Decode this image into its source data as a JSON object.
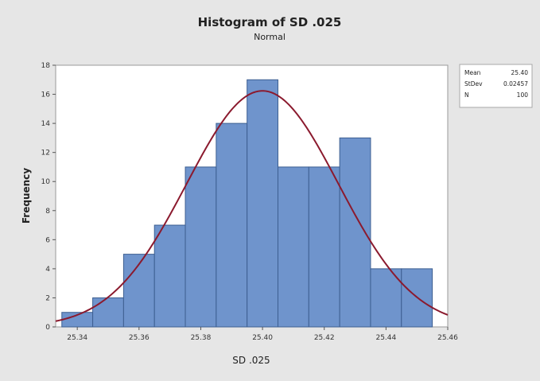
{
  "chart_data": {
    "type": "bar",
    "title": "Histogram of SD .025",
    "subtitle": "Normal",
    "xlabel": "SD .025",
    "ylabel": "Frequency",
    "bin_edges": [
      25.335,
      25.345,
      25.355,
      25.365,
      25.375,
      25.385,
      25.395,
      25.405,
      25.415,
      25.425,
      25.435,
      25.445,
      25.455
    ],
    "values": [
      1,
      2,
      5,
      7,
      11,
      14,
      17,
      11,
      11,
      13,
      4,
      4
    ],
    "xlim": [
      25.333,
      25.46
    ],
    "ylim": [
      0,
      18
    ],
    "x_ticks": [
      "25.34",
      "25.36",
      "25.38",
      "25.40",
      "25.42",
      "25.44",
      "25.46"
    ],
    "y_ticks": [
      "0",
      "2",
      "4",
      "6",
      "8",
      "10",
      "12",
      "14",
      "16",
      "18"
    ],
    "fit": {
      "type": "normal",
      "mean": 25.4,
      "stdev": 0.02457,
      "n": 100,
      "bin_width": 0.01
    },
    "stats": [
      {
        "label": "Mean",
        "value": "25.40"
      },
      {
        "label": "StDev",
        "value": "0.02457"
      },
      {
        "label": "N",
        "value": "100"
      }
    ],
    "legend_position": "right",
    "grid": false,
    "colors": {
      "bar_fill": "#6f94cc",
      "bar_stroke": "#3d5f91",
      "curve": "#8b1a2e",
      "plot_bg": "#ffffff",
      "page_bg": "#e6e6e6"
    }
  }
}
